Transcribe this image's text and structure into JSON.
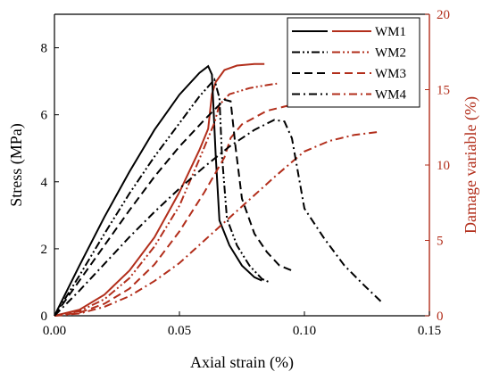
{
  "chart_data": {
    "type": "line",
    "xlabel": "Axial strain (%)",
    "ylabel": "Stress (MPa)",
    "y2label": "Damage variable (%)",
    "xlim": [
      0,
      0.15
    ],
    "ylim": [
      0,
      9
    ],
    "y2lim": [
      0,
      20
    ],
    "xticks": [
      "0.00",
      "0.05",
      "0.10",
      "0.15"
    ],
    "yticks": [
      "0",
      "2",
      "4",
      "6",
      "8"
    ],
    "y2ticks": [
      "0",
      "5",
      "10",
      "15",
      "20"
    ],
    "legend_position": "top-right",
    "colors": {
      "stress": "#000000",
      "damage": "#b22e1b",
      "right_axis": "#b22e1b"
    },
    "series": [
      {
        "name": "WM1",
        "dash": "solid",
        "stress": [
          [
            0,
            0
          ],
          [
            0.01,
            1.5
          ],
          [
            0.02,
            2.95
          ],
          [
            0.03,
            4.3
          ],
          [
            0.04,
            5.55
          ],
          [
            0.05,
            6.6
          ],
          [
            0.058,
            7.25
          ],
          [
            0.0615,
            7.45
          ],
          [
            0.063,
            7.2
          ],
          [
            0.0645,
            4.8
          ],
          [
            0.066,
            2.85
          ],
          [
            0.07,
            2.1
          ],
          [
            0.075,
            1.5
          ],
          [
            0.08,
            1.15
          ],
          [
            0.083,
            1.05
          ]
        ],
        "damage": [
          [
            0,
            0
          ],
          [
            0.01,
            0.4
          ],
          [
            0.02,
            1.4
          ],
          [
            0.03,
            3.0
          ],
          [
            0.04,
            5.2
          ],
          [
            0.05,
            8.2
          ],
          [
            0.058,
            11.0
          ],
          [
            0.0615,
            12.4
          ],
          [
            0.063,
            14.7
          ],
          [
            0.0645,
            15.5
          ],
          [
            0.068,
            16.3
          ],
          [
            0.073,
            16.6
          ],
          [
            0.08,
            16.7
          ],
          [
            0.084,
            16.7
          ]
        ]
      },
      {
        "name": "WM2",
        "dash": "dash-dot-dot",
        "stress": [
          [
            0,
            0
          ],
          [
            0.01,
            1.2
          ],
          [
            0.02,
            2.45
          ],
          [
            0.03,
            3.65
          ],
          [
            0.04,
            4.75
          ],
          [
            0.05,
            5.75
          ],
          [
            0.058,
            6.55
          ],
          [
            0.064,
            7.05
          ],
          [
            0.066,
            6.5
          ],
          [
            0.067,
            4.8
          ],
          [
            0.069,
            2.9
          ],
          [
            0.073,
            2.1
          ],
          [
            0.078,
            1.5
          ],
          [
            0.083,
            1.1
          ],
          [
            0.086,
            1.0
          ]
        ],
        "damage": [
          [
            0,
            0
          ],
          [
            0.01,
            0.3
          ],
          [
            0.02,
            1.1
          ],
          [
            0.03,
            2.5
          ],
          [
            0.04,
            4.6
          ],
          [
            0.05,
            7.3
          ],
          [
            0.058,
            10.4
          ],
          [
            0.064,
            12.8
          ],
          [
            0.066,
            14.0
          ],
          [
            0.07,
            14.7
          ],
          [
            0.078,
            15.1
          ],
          [
            0.085,
            15.3
          ],
          [
            0.089,
            15.4
          ]
        ]
      },
      {
        "name": "WM3",
        "dash": "dash",
        "stress": [
          [
            0,
            0
          ],
          [
            0.01,
            1.05
          ],
          [
            0.02,
            2.1
          ],
          [
            0.03,
            3.15
          ],
          [
            0.04,
            4.15
          ],
          [
            0.05,
            5.05
          ],
          [
            0.06,
            5.85
          ],
          [
            0.068,
            6.45
          ],
          [
            0.0705,
            6.4
          ],
          [
            0.0725,
            5.0
          ],
          [
            0.075,
            3.5
          ],
          [
            0.08,
            2.45
          ],
          [
            0.085,
            1.9
          ],
          [
            0.09,
            1.5
          ],
          [
            0.095,
            1.35
          ]
        ],
        "damage": [
          [
            0,
            0
          ],
          [
            0.01,
            0.2
          ],
          [
            0.02,
            0.8
          ],
          [
            0.03,
            1.8
          ],
          [
            0.04,
            3.4
          ],
          [
            0.05,
            5.6
          ],
          [
            0.06,
            8.2
          ],
          [
            0.068,
            10.5
          ],
          [
            0.0705,
            11.8
          ],
          [
            0.075,
            12.7
          ],
          [
            0.085,
            13.6
          ],
          [
            0.095,
            14.0
          ],
          [
            0.101,
            14.1
          ]
        ]
      },
      {
        "name": "WM4",
        "dash": "dash-dot",
        "stress": [
          [
            0,
            0
          ],
          [
            0.01,
            0.75
          ],
          [
            0.02,
            1.55
          ],
          [
            0.03,
            2.35
          ],
          [
            0.04,
            3.1
          ],
          [
            0.05,
            3.8
          ],
          [
            0.06,
            4.45
          ],
          [
            0.07,
            5.05
          ],
          [
            0.08,
            5.55
          ],
          [
            0.088,
            5.85
          ],
          [
            0.092,
            5.8
          ],
          [
            0.095,
            5.3
          ],
          [
            0.1,
            3.2
          ],
          [
            0.108,
            2.3
          ],
          [
            0.116,
            1.5
          ],
          [
            0.124,
            0.9
          ],
          [
            0.131,
            0.4
          ]
        ],
        "damage": [
          [
            0,
            0
          ],
          [
            0.01,
            0.15
          ],
          [
            0.02,
            0.6
          ],
          [
            0.03,
            1.3
          ],
          [
            0.04,
            2.3
          ],
          [
            0.05,
            3.5
          ],
          [
            0.06,
            5.0
          ],
          [
            0.07,
            6.5
          ],
          [
            0.08,
            8.0
          ],
          [
            0.088,
            9.2
          ],
          [
            0.095,
            10.2
          ],
          [
            0.1,
            10.9
          ],
          [
            0.11,
            11.6
          ],
          [
            0.12,
            12.0
          ],
          [
            0.13,
            12.2
          ]
        ]
      }
    ]
  }
}
